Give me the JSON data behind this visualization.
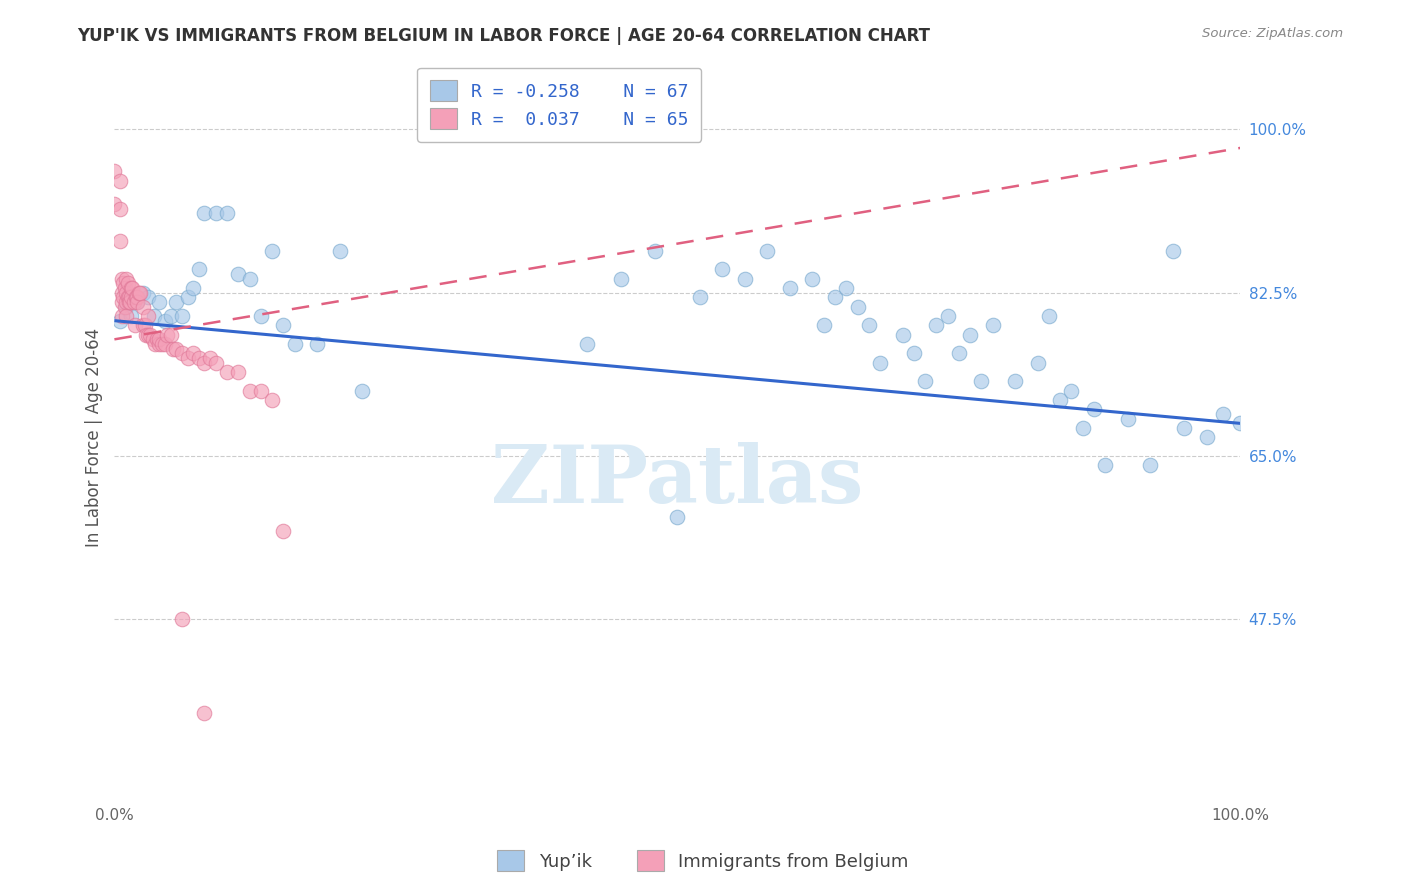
{
  "title": "YUP'IK VS IMMIGRANTS FROM BELGIUM IN LABOR FORCE | AGE 20-64 CORRELATION CHART",
  "source": "Source: ZipAtlas.com",
  "xlabel_bottom_left": "0.0%",
  "xlabel_bottom_right": "100.0%",
  "ylabel": "In Labor Force | Age 20-64",
  "ylabel_ticks": [
    "47.5%",
    "65.0%",
    "82.5%",
    "100.0%"
  ],
  "ylabel_tick_vals": [
    0.475,
    0.65,
    0.825,
    1.0
  ],
  "legend_label1": "Yup’ik",
  "legend_label2": "Immigrants from Belgium",
  "R1": -0.258,
  "N1": 67,
  "R2": 0.037,
  "N2": 65,
  "blue_color": "#a8c8e8",
  "pink_color": "#f4a0b8",
  "blue_edge_color": "#7aaacf",
  "pink_edge_color": "#e07898",
  "blue_line_color": "#3366cc",
  "pink_line_color": "#e06080",
  "watermark_color": "#daeaf5",
  "watermark": "ZIPatlas",
  "blue_x": [
    0.005,
    0.01,
    0.015,
    0.02,
    0.025,
    0.03,
    0.035,
    0.04,
    0.045,
    0.05,
    0.055,
    0.06,
    0.065,
    0.07,
    0.075,
    0.08,
    0.09,
    0.1,
    0.11,
    0.12,
    0.13,
    0.14,
    0.15,
    0.16,
    0.18,
    0.2,
    0.22,
    0.42,
    0.45,
    0.48,
    0.5,
    0.52,
    0.54,
    0.56,
    0.58,
    0.6,
    0.62,
    0.63,
    0.64,
    0.65,
    0.66,
    0.67,
    0.68,
    0.7,
    0.71,
    0.72,
    0.73,
    0.74,
    0.75,
    0.76,
    0.77,
    0.78,
    0.8,
    0.82,
    0.83,
    0.84,
    0.85,
    0.86,
    0.87,
    0.88,
    0.9,
    0.92,
    0.94,
    0.95,
    0.97,
    0.985,
    1.0
  ],
  "blue_y": [
    0.795,
    0.81,
    0.8,
    0.815,
    0.825,
    0.82,
    0.8,
    0.815,
    0.795,
    0.8,
    0.815,
    0.8,
    0.82,
    0.83,
    0.85,
    0.91,
    0.91,
    0.91,
    0.845,
    0.84,
    0.8,
    0.87,
    0.79,
    0.77,
    0.77,
    0.87,
    0.72,
    0.77,
    0.84,
    0.87,
    0.585,
    0.82,
    0.85,
    0.84,
    0.87,
    0.83,
    0.84,
    0.79,
    0.82,
    0.83,
    0.81,
    0.79,
    0.75,
    0.78,
    0.76,
    0.73,
    0.79,
    0.8,
    0.76,
    0.78,
    0.73,
    0.79,
    0.73,
    0.75,
    0.8,
    0.71,
    0.72,
    0.68,
    0.7,
    0.64,
    0.69,
    0.64,
    0.87,
    0.68,
    0.67,
    0.695,
    0.685
  ],
  "pink_x": [
    0.0,
    0.0,
    0.005,
    0.005,
    0.005,
    0.007,
    0.007,
    0.007,
    0.007,
    0.008,
    0.008,
    0.009,
    0.009,
    0.01,
    0.01,
    0.01,
    0.01,
    0.012,
    0.012,
    0.013,
    0.013,
    0.014,
    0.015,
    0.015,
    0.016,
    0.017,
    0.018,
    0.019,
    0.02,
    0.02,
    0.022,
    0.023,
    0.025,
    0.025,
    0.027,
    0.028,
    0.03,
    0.03,
    0.032,
    0.034,
    0.036,
    0.038,
    0.04,
    0.04,
    0.042,
    0.045,
    0.047,
    0.05,
    0.052,
    0.055,
    0.06,
    0.065,
    0.07,
    0.075,
    0.08,
    0.085,
    0.09,
    0.1,
    0.11,
    0.12,
    0.13,
    0.14,
    0.15,
    0.06,
    0.08
  ],
  "pink_y": [
    0.955,
    0.92,
    0.945,
    0.915,
    0.88,
    0.84,
    0.825,
    0.815,
    0.8,
    0.835,
    0.82,
    0.81,
    0.83,
    0.84,
    0.825,
    0.815,
    0.8,
    0.835,
    0.82,
    0.82,
    0.815,
    0.815,
    0.83,
    0.82,
    0.83,
    0.815,
    0.79,
    0.82,
    0.82,
    0.815,
    0.825,
    0.825,
    0.79,
    0.81,
    0.79,
    0.78,
    0.8,
    0.78,
    0.78,
    0.775,
    0.77,
    0.775,
    0.77,
    0.775,
    0.77,
    0.77,
    0.78,
    0.78,
    0.765,
    0.765,
    0.76,
    0.755,
    0.76,
    0.755,
    0.75,
    0.755,
    0.75,
    0.74,
    0.74,
    0.72,
    0.72,
    0.71,
    0.57,
    0.475,
    0.375
  ],
  "blue_trendline": [
    0.0,
    1.0,
    0.795,
    0.685
  ],
  "pink_trendline": [
    0.0,
    1.0,
    0.775,
    0.98
  ],
  "ylim_min": 0.28,
  "ylim_max": 1.06,
  "xlim_min": 0.0,
  "xlim_max": 1.0,
  "title_fontsize": 12,
  "axis_tick_fontsize": 11,
  "ylabel_fontsize": 12,
  "legend_fontsize": 13,
  "dot_size": 110,
  "dot_alpha": 0.65
}
